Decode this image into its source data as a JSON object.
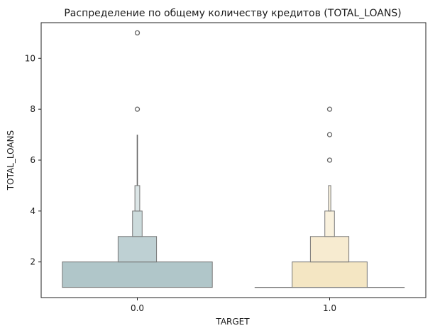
{
  "chart_data": {
    "type": "boxen",
    "title": "Распределение по общему количеству кредитов (TOTAL_LOANS)",
    "xlabel": "TARGET",
    "ylabel": "TOTAL_LOANS",
    "categories": [
      "0.0",
      "1.0"
    ],
    "ylim": [
      0.6,
      11.4
    ],
    "yticks": [
      2,
      4,
      6,
      8,
      10
    ],
    "grid": false,
    "series": [
      {
        "name": "0.0",
        "color": "#b0c6c9",
        "boxes": [
          {
            "lo": 1,
            "hi": 2,
            "width_frac": 0.78,
            "median": null
          },
          {
            "lo": 2,
            "hi": 3,
            "width_frac": 0.2,
            "median": null
          },
          {
            "lo": 3,
            "hi": 4,
            "width_frac": 0.05,
            "median": null
          },
          {
            "lo": 4,
            "hi": 5,
            "width_frac": 0.025,
            "median": null
          }
        ],
        "tail": [
          5,
          7
        ],
        "outliers": [
          8,
          11
        ]
      },
      {
        "name": "1.0",
        "color": "#f2e0b6",
        "boxes": [
          {
            "lo": 1,
            "hi": 1,
            "width_frac": 0.78,
            "median": 1
          },
          {
            "lo": 1,
            "hi": 2,
            "width_frac": 0.39,
            "median": null
          },
          {
            "lo": 2,
            "hi": 3,
            "width_frac": 0.2,
            "median": null
          },
          {
            "lo": 3,
            "hi": 4,
            "width_frac": 0.05,
            "median": null
          },
          {
            "lo": 4,
            "hi": 5,
            "width_frac": 0.012,
            "median": null
          }
        ],
        "tail": [],
        "outliers": [
          6,
          7,
          8
        ]
      }
    ]
  }
}
